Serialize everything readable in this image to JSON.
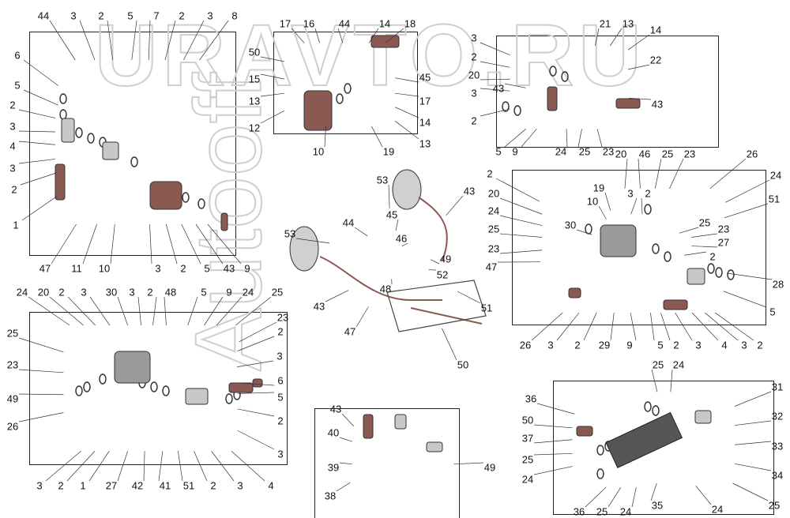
{
  "watermark": {
    "top": "URAVTO.RU",
    "vertical": "Autooff"
  },
  "colors": {
    "part_brown": "#8a5a52",
    "part_gray": "#9a9a9a",
    "line": "#222222"
  },
  "callouts": {
    "top_left": [
      "44",
      "3",
      "2",
      "5",
      "7",
      "2",
      "3",
      "8",
      "6",
      "5",
      "2",
      "3",
      "4",
      "3",
      "2",
      "1",
      "47",
      "11",
      "10",
      "3",
      "2",
      "5",
      "43",
      "9"
    ],
    "top_middle": [
      "17",
      "16",
      "44",
      "14",
      "18",
      "50",
      "15",
      "13",
      "12",
      "45",
      "17",
      "14",
      "13",
      "10",
      "19"
    ],
    "top_right": [
      "3",
      "2",
      "20",
      "3",
      "2",
      "43",
      "5",
      "9",
      "24",
      "25",
      "23",
      "21",
      "13",
      "14",
      "22",
      "43"
    ],
    "mid_right": [
      "2",
      "20",
      "24",
      "25",
      "23",
      "47",
      "30",
      "19",
      "10",
      "3",
      "2",
      "20",
      "46",
      "25",
      "23",
      "26",
      "24",
      "51",
      "25",
      "23",
      "27",
      "2",
      "28",
      "5",
      "26",
      "3",
      "2",
      "29",
      "9",
      "5",
      "2",
      "3",
      "4",
      "3",
      "2"
    ],
    "center": [
      "53",
      "43",
      "45",
      "53",
      "44",
      "46",
      "49",
      "52",
      "51",
      "48",
      "43",
      "47",
      "50"
    ],
    "bottom_left": [
      "24",
      "20",
      "2",
      "3",
      "30",
      "3",
      "2",
      "48",
      "5",
      "9",
      "24",
      "25",
      "23",
      "2",
      "3",
      "6",
      "5",
      "2",
      "3",
      "25",
      "23",
      "49",
      "26",
      "3",
      "2",
      "1",
      "27",
      "42",
      "41",
      "51",
      "2",
      "3",
      "4"
    ],
    "bottom_center": [
      "43",
      "40",
      "39",
      "38",
      "49"
    ],
    "bottom_right": [
      "25",
      "24",
      "31",
      "36",
      "50",
      "37",
      "25",
      "24",
      "32",
      "33",
      "34",
      "35",
      "25",
      "24",
      "36",
      "25",
      "24"
    ]
  }
}
